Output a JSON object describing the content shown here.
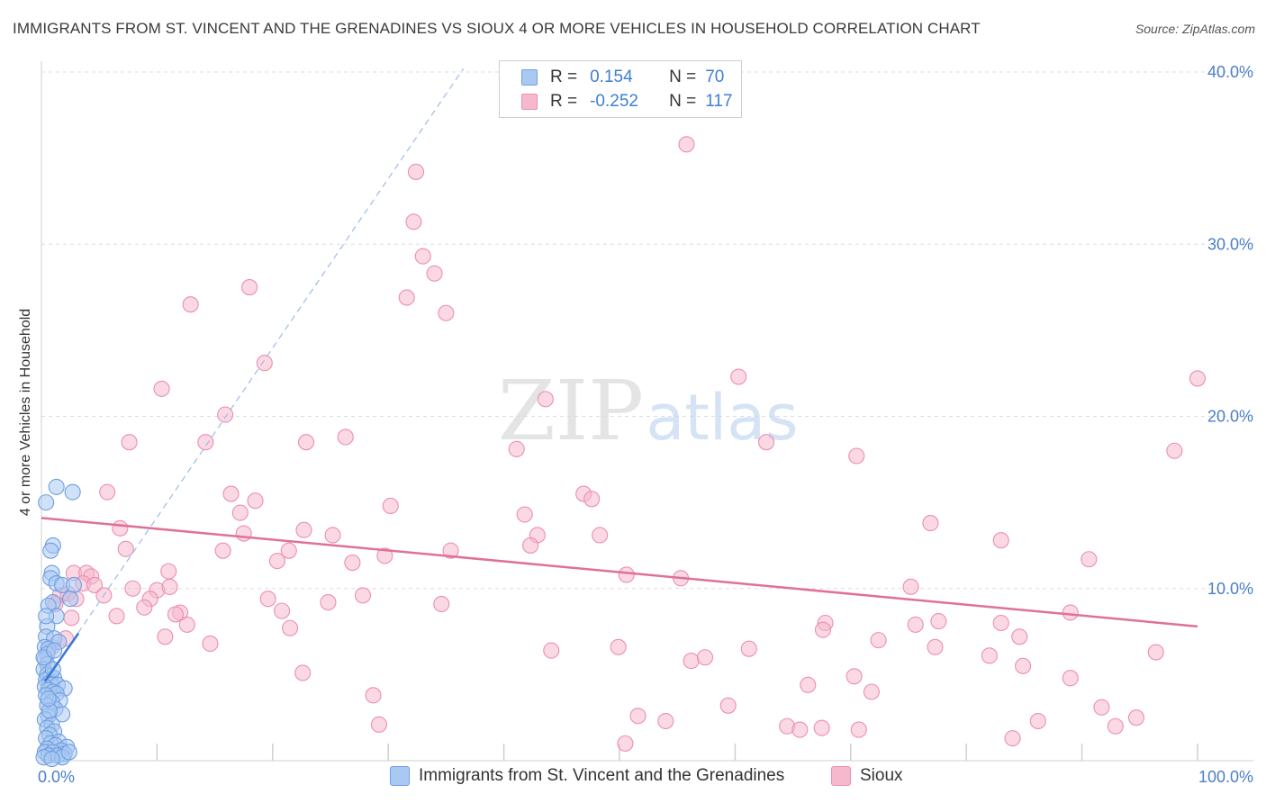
{
  "title": "IMMIGRANTS FROM ST. VINCENT AND THE GRENADINES VS SIOUX 4 OR MORE VEHICLES IN HOUSEHOLD CORRELATION CHART",
  "source": "Source: ZipAtlas.com",
  "watermark": {
    "zip": "ZIP",
    "atlas": "atlas"
  },
  "colors": {
    "blue_fill": "#a9c9f2",
    "blue_stroke": "#6f9fe0",
    "blue_line": "#3b78d6",
    "pink_fill": "#f6b8cd",
    "pink_stroke": "#ec8fb0",
    "pink_line": "#e0709a",
    "grid": "#dedede",
    "tick_text": "#4a7fc8"
  },
  "legend": [
    {
      "r_label": "R =",
      "r_value": "0.154",
      "n_label": "N =",
      "n_value": "70",
      "color": "blue"
    },
    {
      "r_label": "R =",
      "r_value": "-0.252",
      "n_label": "N =",
      "n_value": "117",
      "color": "pink"
    }
  ],
  "bottom_legend": [
    {
      "label": "Immigrants from St. Vincent and the Grenadines",
      "color": "blue"
    },
    {
      "label": "Sioux",
      "color": "pink"
    }
  ],
  "chart_data": {
    "type": "scatter",
    "title": "IMMIGRANTS FROM ST. VINCENT AND THE GRENADINES VS SIOUX 4 OR MORE VEHICLES IN HOUSEHOLD CORRELATION CHART",
    "xlabel": "",
    "ylabel": "4 or more Vehicles in Household",
    "xlim": [
      0,
      100
    ],
    "ylim": [
      0,
      40
    ],
    "x_ticks": [
      "0.0%",
      "100.0%"
    ],
    "y_ticks": [
      {
        "value": 10,
        "label": "10.0%"
      },
      {
        "value": 20,
        "label": "20.0%"
      },
      {
        "value": 30,
        "label": "30.0%"
      },
      {
        "value": 40,
        "label": "40.0%"
      }
    ],
    "grid": true,
    "legend_position": "top-center",
    "series": [
      {
        "name": "Immigrants from St. Vincent and the Grenadines",
        "color": "blue",
        "r": 0.154,
        "n": 70,
        "trend": {
          "x0": 0.3,
          "y0": 4.6,
          "x1": 3.2,
          "y1": 7.4
        },
        "trend_extended": {
          "x0": 0,
          "y0": 4.3,
          "x1": 36.5,
          "y1": 40.2
        },
        "points": [
          [
            0.4,
            15.0
          ],
          [
            1.3,
            15.9
          ],
          [
            2.7,
            15.6
          ],
          [
            1.0,
            12.5
          ],
          [
            0.8,
            12.2
          ],
          [
            0.9,
            10.9
          ],
          [
            0.8,
            10.6
          ],
          [
            1.3,
            10.3
          ],
          [
            1.8,
            10.2
          ],
          [
            2.8,
            10.2
          ],
          [
            2.5,
            9.4
          ],
          [
            1.0,
            9.2
          ],
          [
            0.6,
            9.0
          ],
          [
            1.3,
            8.4
          ],
          [
            0.5,
            7.8
          ],
          [
            0.4,
            7.2
          ],
          [
            1.1,
            7.1
          ],
          [
            1.5,
            6.9
          ],
          [
            0.3,
            6.6
          ],
          [
            0.6,
            6.5
          ],
          [
            0.5,
            6.2
          ],
          [
            0.3,
            5.9
          ],
          [
            0.5,
            5.6
          ],
          [
            0.2,
            5.3
          ],
          [
            0.5,
            5.0
          ],
          [
            0.8,
            4.9
          ],
          [
            1.1,
            4.8
          ],
          [
            0.4,
            4.7
          ],
          [
            0.7,
            4.5
          ],
          [
            0.9,
            4.4
          ],
          [
            1.4,
            4.4
          ],
          [
            0.3,
            4.3
          ],
          [
            2.0,
            4.2
          ],
          [
            0.6,
            4.1
          ],
          [
            1.0,
            4.0
          ],
          [
            1.3,
            3.9
          ],
          [
            0.4,
            3.8
          ],
          [
            1.6,
            3.5
          ],
          [
            0.9,
            3.4
          ],
          [
            0.5,
            3.2
          ],
          [
            1.2,
            3.0
          ],
          [
            1.8,
            2.7
          ],
          [
            0.6,
            2.6
          ],
          [
            0.3,
            2.4
          ],
          [
            0.9,
            2.1
          ],
          [
            0.5,
            1.9
          ],
          [
            1.1,
            1.7
          ],
          [
            0.7,
            1.5
          ],
          [
            0.4,
            1.3
          ],
          [
            1.5,
            1.1
          ],
          [
            0.8,
            1.0
          ],
          [
            1.2,
            0.9
          ],
          [
            2.2,
            0.8
          ],
          [
            0.5,
            0.7
          ],
          [
            1.7,
            0.6
          ],
          [
            0.3,
            0.5
          ],
          [
            1.0,
            0.5
          ],
          [
            2.0,
            0.4
          ],
          [
            0.6,
            0.3
          ],
          [
            1.4,
            0.3
          ],
          [
            0.2,
            0.2
          ],
          [
            1.8,
            0.2
          ],
          [
            0.9,
            0.1
          ],
          [
            2.4,
            0.5
          ],
          [
            0.7,
            2.9
          ],
          [
            1.0,
            5.3
          ],
          [
            0.2,
            6.0
          ],
          [
            0.6,
            3.6
          ],
          [
            1.1,
            6.4
          ],
          [
            0.4,
            8.4
          ]
        ]
      },
      {
        "name": "Sioux",
        "color": "pink",
        "r": -0.252,
        "n": 117,
        "trend": {
          "x0": 0,
          "y0": 14.1,
          "x1": 100,
          "y1": 7.8
        },
        "points": [
          [
            55.8,
            35.8
          ],
          [
            32.4,
            34.2
          ],
          [
            32.2,
            31.3
          ],
          [
            33.0,
            29.3
          ],
          [
            34.0,
            28.3
          ],
          [
            18.0,
            27.5
          ],
          [
            31.6,
            26.9
          ],
          [
            12.9,
            26.5
          ],
          [
            35.0,
            26.0
          ],
          [
            19.3,
            23.1
          ],
          [
            60.3,
            22.3
          ],
          [
            100.0,
            22.2
          ],
          [
            10.4,
            21.6
          ],
          [
            43.6,
            21.0
          ],
          [
            15.9,
            20.1
          ],
          [
            7.6,
            18.5
          ],
          [
            14.2,
            18.5
          ],
          [
            22.9,
            18.5
          ],
          [
            26.3,
            18.8
          ],
          [
            62.7,
            18.5
          ],
          [
            41.1,
            18.1
          ],
          [
            70.5,
            17.7
          ],
          [
            98.0,
            18.0
          ],
          [
            5.7,
            15.6
          ],
          [
            16.4,
            15.5
          ],
          [
            18.5,
            15.1
          ],
          [
            46.9,
            15.5
          ],
          [
            47.6,
            15.2
          ],
          [
            30.2,
            14.8
          ],
          [
            17.2,
            14.4
          ],
          [
            41.8,
            14.3
          ],
          [
            76.9,
            13.8
          ],
          [
            6.8,
            13.5
          ],
          [
            17.5,
            13.2
          ],
          [
            22.7,
            13.4
          ],
          [
            25.2,
            13.1
          ],
          [
            42.9,
            13.1
          ],
          [
            48.3,
            13.1
          ],
          [
            83.0,
            12.8
          ],
          [
            7.3,
            12.3
          ],
          [
            15.7,
            12.2
          ],
          [
            21.4,
            12.2
          ],
          [
            35.4,
            12.2
          ],
          [
            42.3,
            12.5
          ],
          [
            29.7,
            11.9
          ],
          [
            20.4,
            11.6
          ],
          [
            26.9,
            11.5
          ],
          [
            90.6,
            11.7
          ],
          [
            2.8,
            10.9
          ],
          [
            3.9,
            10.9
          ],
          [
            4.3,
            10.7
          ],
          [
            11.0,
            11.0
          ],
          [
            50.6,
            10.8
          ],
          [
            55.3,
            10.6
          ],
          [
            3.6,
            10.3
          ],
          [
            4.6,
            10.2
          ],
          [
            7.9,
            10.0
          ],
          [
            10.0,
            9.9
          ],
          [
            11.1,
            10.1
          ],
          [
            75.2,
            10.1
          ],
          [
            1.6,
            9.6
          ],
          [
            2.3,
            9.7
          ],
          [
            5.4,
            9.6
          ],
          [
            9.4,
            9.4
          ],
          [
            19.6,
            9.4
          ],
          [
            24.8,
            9.2
          ],
          [
            27.8,
            9.6
          ],
          [
            34.6,
            9.1
          ],
          [
            2.6,
            8.3
          ],
          [
            6.5,
            8.4
          ],
          [
            8.9,
            8.9
          ],
          [
            12.0,
            8.6
          ],
          [
            11.6,
            8.5
          ],
          [
            20.8,
            8.7
          ],
          [
            12.6,
            7.9
          ],
          [
            21.5,
            7.7
          ],
          [
            67.8,
            8.0
          ],
          [
            75.6,
            7.9
          ],
          [
            77.6,
            8.1
          ],
          [
            83.0,
            8.0
          ],
          [
            89.0,
            8.6
          ],
          [
            10.7,
            7.2
          ],
          [
            14.6,
            6.8
          ],
          [
            67.6,
            7.6
          ],
          [
            72.4,
            7.0
          ],
          [
            84.6,
            7.2
          ],
          [
            44.1,
            6.4
          ],
          [
            49.9,
            6.6
          ],
          [
            56.2,
            5.8
          ],
          [
            57.4,
            6.0
          ],
          [
            61.2,
            6.5
          ],
          [
            77.3,
            6.6
          ],
          [
            82.0,
            6.1
          ],
          [
            96.4,
            6.3
          ],
          [
            22.6,
            5.1
          ],
          [
            70.3,
            4.9
          ],
          [
            84.9,
            5.5
          ],
          [
            89.0,
            4.8
          ],
          [
            66.3,
            4.4
          ],
          [
            71.8,
            4.0
          ],
          [
            28.7,
            3.8
          ],
          [
            59.4,
            3.2
          ],
          [
            91.7,
            3.1
          ],
          [
            29.2,
            2.1
          ],
          [
            51.6,
            2.6
          ],
          [
            54.0,
            2.3
          ],
          [
            64.5,
            2.0
          ],
          [
            65.6,
            1.8
          ],
          [
            67.5,
            1.9
          ],
          [
            70.7,
            1.8
          ],
          [
            86.2,
            2.3
          ],
          [
            92.9,
            2.0
          ],
          [
            94.7,
            2.5
          ],
          [
            50.5,
            1.0
          ],
          [
            84.0,
            1.3
          ],
          [
            1.2,
            9.1
          ],
          [
            3.0,
            9.4
          ],
          [
            2.1,
            7.1
          ],
          [
            0.9,
            6.6
          ]
        ]
      }
    ]
  }
}
